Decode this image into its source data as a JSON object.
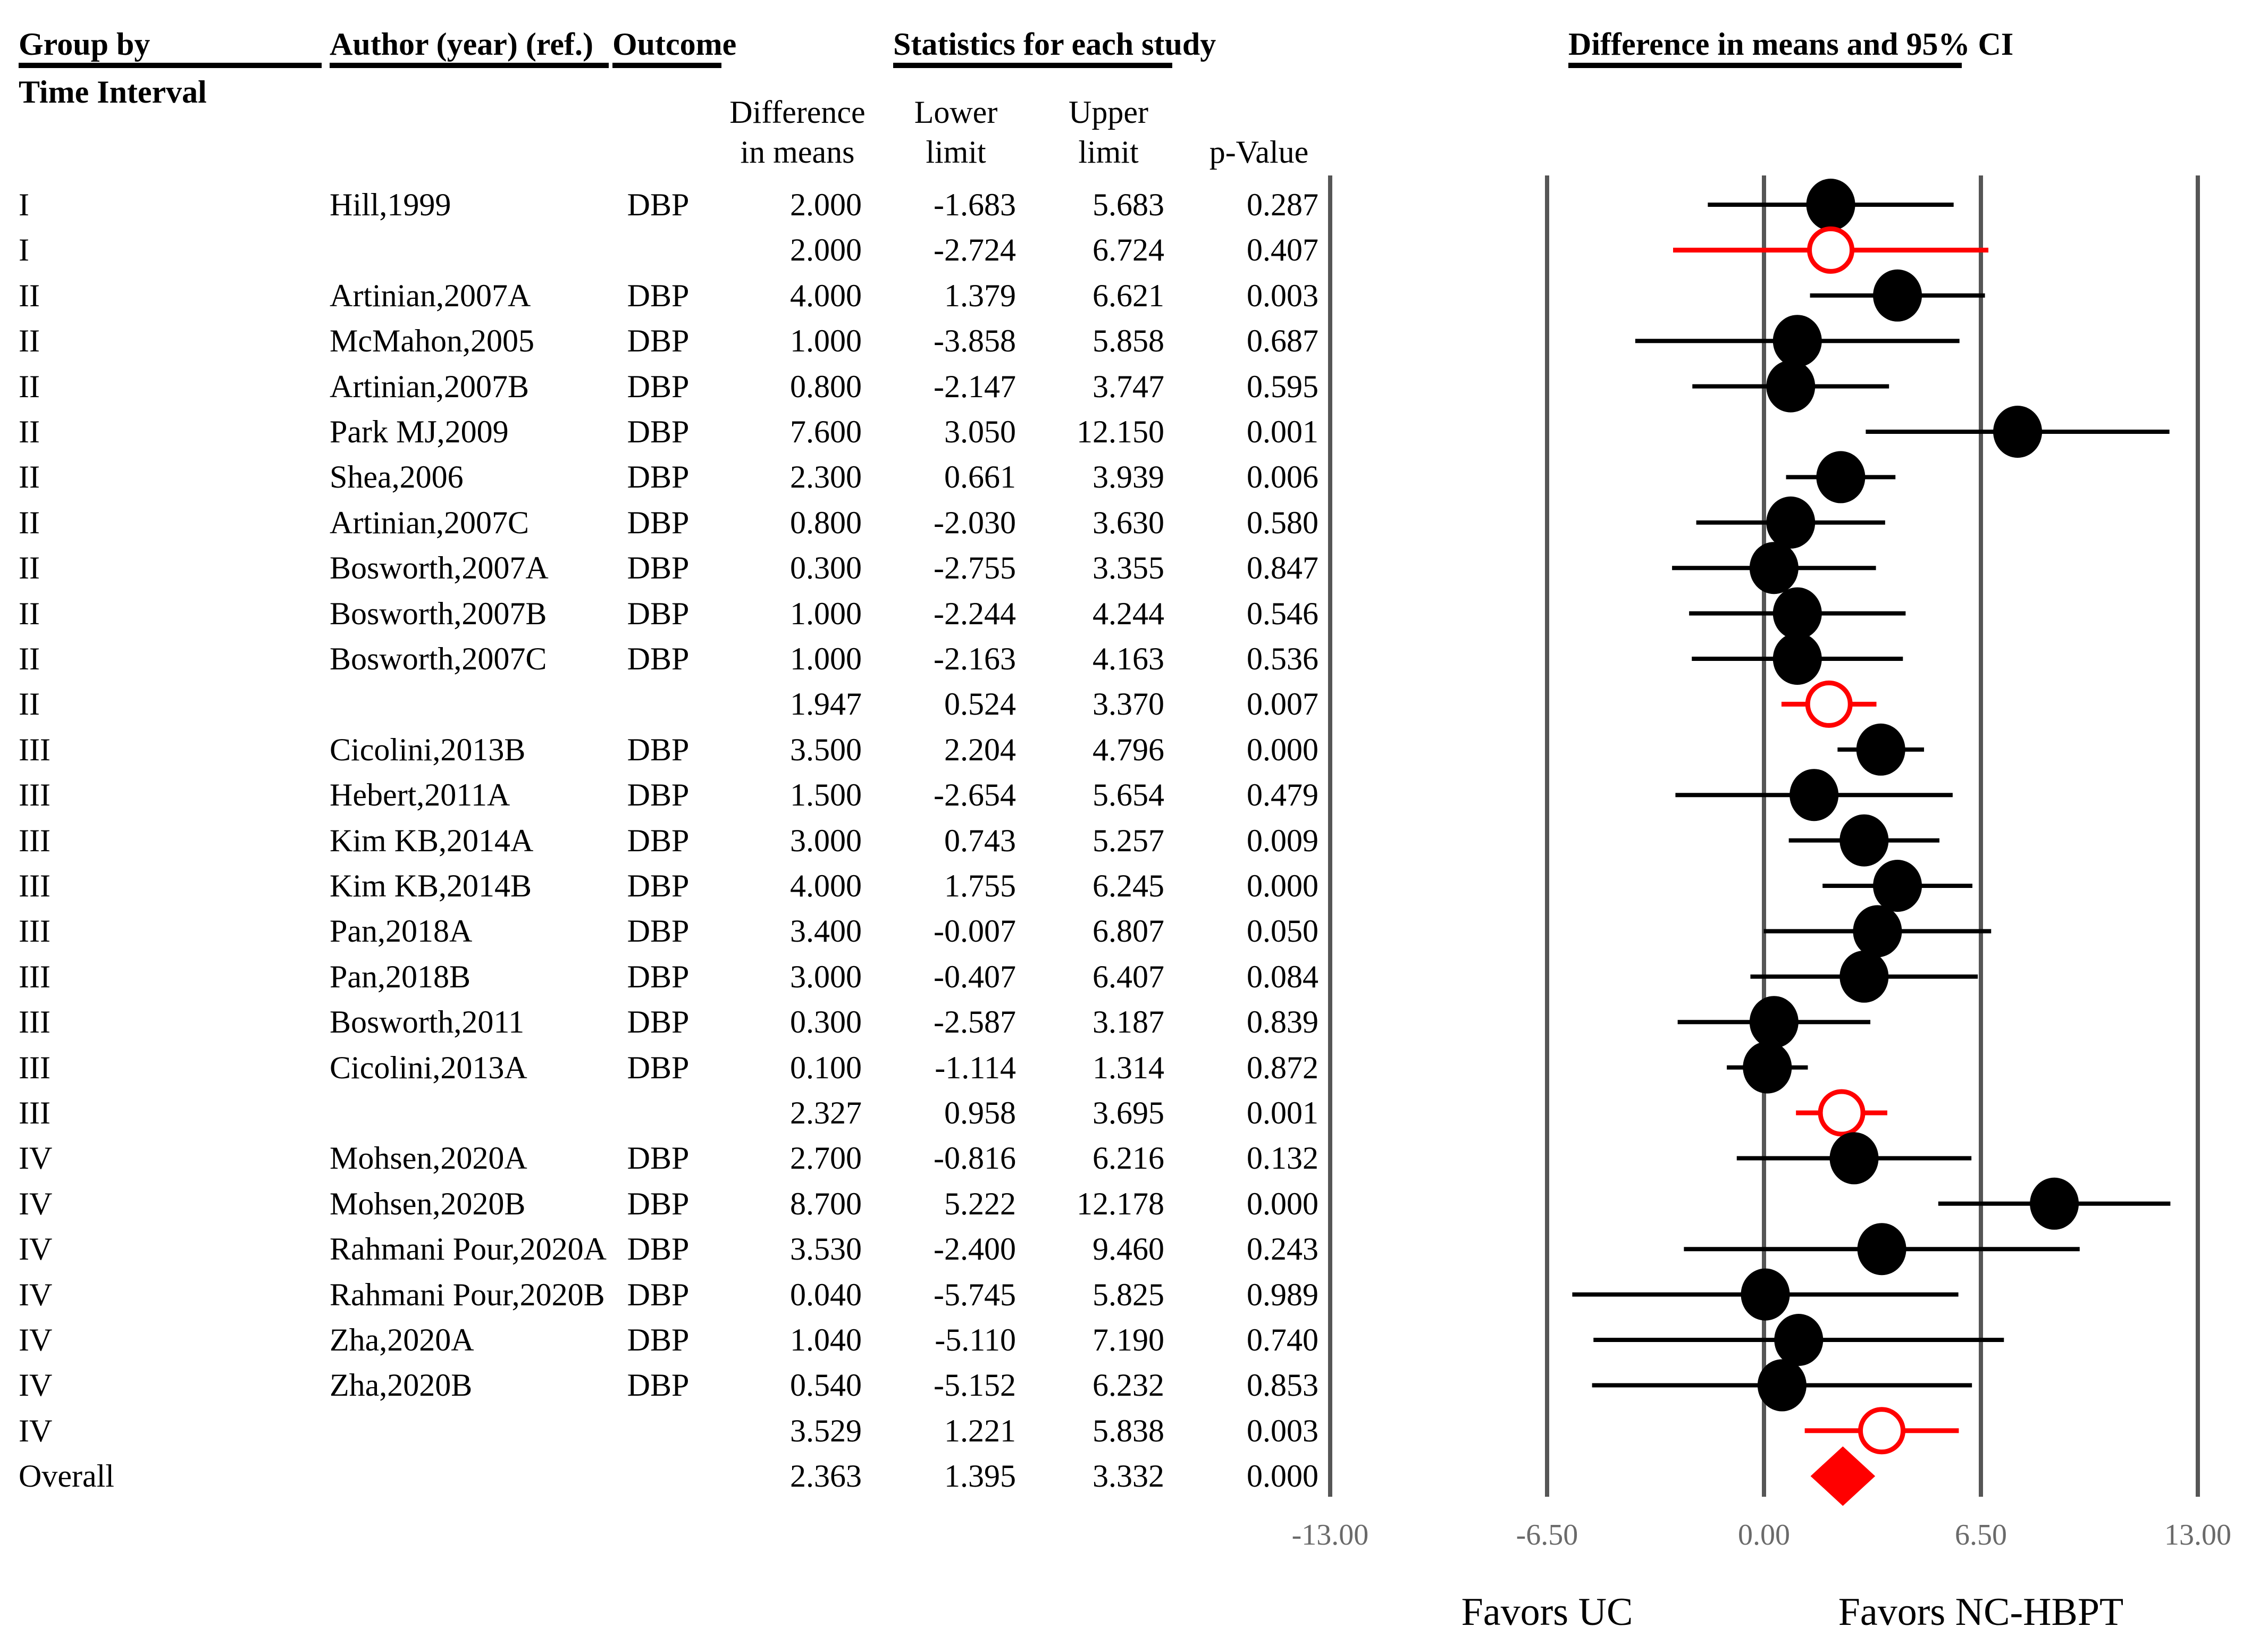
{
  "header": {
    "group_by": "Group by",
    "group_by_sub": "Time Interval",
    "author": "Author (year) (ref.)",
    "outcome": "Outcome",
    "statistics": "Statistics for each study",
    "plot_title": "Difference in means and 95% CI",
    "col_diff_line1": "Difference",
    "col_diff_line2": "in means",
    "col_lower_line1": "Lower",
    "col_lower_line2": "limit",
    "col_upper_line1": "Upper",
    "col_upper_line2": "limit",
    "col_p": "p-Value"
  },
  "footer": {
    "favors_left": "Favors UC",
    "favors_right": "Favors NC-HBPT"
  },
  "colors": {
    "study_marker": "#000000",
    "ci_line": "#000000",
    "summary_marker": "#ff0000",
    "overall_diamond": "#ff0000",
    "gridline": "#565656",
    "tick_label": "#6a6a6a",
    "text": "#000000"
  },
  "chart_data": {
    "type": "forest",
    "outcome_measure": "Difference in means",
    "xlim": [
      -13,
      13
    ],
    "grid": true,
    "ticks": [
      {
        "value": -13,
        "label": "-13.00"
      },
      {
        "value": -6.5,
        "label": "-6.50"
      },
      {
        "value": 0,
        "label": "0.00"
      },
      {
        "value": 6.5,
        "label": "6.50"
      },
      {
        "value": 13,
        "label": "13.00"
      }
    ],
    "rows": [
      {
        "group": "I",
        "author": "Hill,1999",
        "outcome": "DBP",
        "diff": "2.000",
        "lower": "-1.683",
        "upper": "5.683",
        "p": "0.287",
        "kind": "study"
      },
      {
        "group": "I",
        "author": "",
        "outcome": "",
        "diff": "2.000",
        "lower": "-2.724",
        "upper": "6.724",
        "p": "0.407",
        "kind": "summary"
      },
      {
        "group": "II",
        "author": "Artinian,2007A",
        "outcome": "DBP",
        "diff": "4.000",
        "lower": "1.379",
        "upper": "6.621",
        "p": "0.003",
        "kind": "study"
      },
      {
        "group": "II",
        "author": "McMahon,2005",
        "outcome": "DBP",
        "diff": "1.000",
        "lower": "-3.858",
        "upper": "5.858",
        "p": "0.687",
        "kind": "study"
      },
      {
        "group": "II",
        "author": "Artinian,2007B",
        "outcome": "DBP",
        "diff": "0.800",
        "lower": "-2.147",
        "upper": "3.747",
        "p": "0.595",
        "kind": "study"
      },
      {
        "group": "II",
        "author": "Park MJ,2009",
        "outcome": "DBP",
        "diff": "7.600",
        "lower": "3.050",
        "upper": "12.150",
        "p": "0.001",
        "kind": "study"
      },
      {
        "group": "II",
        "author": "Shea,2006",
        "outcome": "DBP",
        "diff": "2.300",
        "lower": "0.661",
        "upper": "3.939",
        "p": "0.006",
        "kind": "study"
      },
      {
        "group": "II",
        "author": "Artinian,2007C",
        "outcome": "DBP",
        "diff": "0.800",
        "lower": "-2.030",
        "upper": "3.630",
        "p": "0.580",
        "kind": "study"
      },
      {
        "group": "II",
        "author": "Bosworth,2007A",
        "outcome": "DBP",
        "diff": "0.300",
        "lower": "-2.755",
        "upper": "3.355",
        "p": "0.847",
        "kind": "study"
      },
      {
        "group": "II",
        "author": "Bosworth,2007B",
        "outcome": "DBP",
        "diff": "1.000",
        "lower": "-2.244",
        "upper": "4.244",
        "p": "0.546",
        "kind": "study"
      },
      {
        "group": "II",
        "author": "Bosworth,2007C",
        "outcome": "DBP",
        "diff": "1.000",
        "lower": "-2.163",
        "upper": "4.163",
        "p": "0.536",
        "kind": "study"
      },
      {
        "group": "II",
        "author": "",
        "outcome": "",
        "diff": "1.947",
        "lower": "0.524",
        "upper": "3.370",
        "p": "0.007",
        "kind": "summary"
      },
      {
        "group": "III",
        "author": "Cicolini,2013B",
        "outcome": "DBP",
        "diff": "3.500",
        "lower": "2.204",
        "upper": "4.796",
        "p": "0.000",
        "kind": "study"
      },
      {
        "group": "III",
        "author": "Hebert,2011A",
        "outcome": "DBP",
        "diff": "1.500",
        "lower": "-2.654",
        "upper": "5.654",
        "p": "0.479",
        "kind": "study"
      },
      {
        "group": "III",
        "author": "Kim KB,2014A",
        "outcome": "DBP",
        "diff": "3.000",
        "lower": "0.743",
        "upper": "5.257",
        "p": "0.009",
        "kind": "study"
      },
      {
        "group": "III",
        "author": "Kim KB,2014B",
        "outcome": "DBP",
        "diff": "4.000",
        "lower": "1.755",
        "upper": "6.245",
        "p": "0.000",
        "kind": "study"
      },
      {
        "group": "III",
        "author": "Pan,2018A",
        "outcome": "DBP",
        "diff": "3.400",
        "lower": "-0.007",
        "upper": "6.807",
        "p": "0.050",
        "kind": "study"
      },
      {
        "group": "III",
        "author": "Pan,2018B",
        "outcome": "DBP",
        "diff": "3.000",
        "lower": "-0.407",
        "upper": "6.407",
        "p": "0.084",
        "kind": "study"
      },
      {
        "group": "III",
        "author": "Bosworth,2011",
        "outcome": "DBP",
        "diff": "0.300",
        "lower": "-2.587",
        "upper": "3.187",
        "p": "0.839",
        "kind": "study"
      },
      {
        "group": "III",
        "author": "Cicolini,2013A",
        "outcome": "DBP",
        "diff": "0.100",
        "lower": "-1.114",
        "upper": "1.314",
        "p": "0.872",
        "kind": "study"
      },
      {
        "group": "III",
        "author": "",
        "outcome": "",
        "diff": "2.327",
        "lower": "0.958",
        "upper": "3.695",
        "p": "0.001",
        "kind": "summary"
      },
      {
        "group": "IV",
        "author": "Mohsen,2020A",
        "outcome": "DBP",
        "diff": "2.700",
        "lower": "-0.816",
        "upper": "6.216",
        "p": "0.132",
        "kind": "study"
      },
      {
        "group": "IV",
        "author": "Mohsen,2020B",
        "outcome": "DBP",
        "diff": "8.700",
        "lower": "5.222",
        "upper": "12.178",
        "p": "0.000",
        "kind": "study"
      },
      {
        "group": "IV",
        "author": "Rahmani Pour,2020A",
        "outcome": "DBP",
        "diff": "3.530",
        "lower": "-2.400",
        "upper": "9.460",
        "p": "0.243",
        "kind": "study"
      },
      {
        "group": "IV",
        "author": "Rahmani Pour,2020B",
        "outcome": "DBP",
        "diff": "0.040",
        "lower": "-5.745",
        "upper": "5.825",
        "p": "0.989",
        "kind": "study"
      },
      {
        "group": "IV",
        "author": "Zha,2020A",
        "outcome": "DBP",
        "diff": "1.040",
        "lower": "-5.110",
        "upper": "7.190",
        "p": "0.740",
        "kind": "study"
      },
      {
        "group": "IV",
        "author": "Zha,2020B",
        "outcome": "DBP",
        "diff": "0.540",
        "lower": "-5.152",
        "upper": "6.232",
        "p": "0.853",
        "kind": "study"
      },
      {
        "group": "IV",
        "author": "",
        "outcome": "",
        "diff": "3.529",
        "lower": "1.221",
        "upper": "5.838",
        "p": "0.003",
        "kind": "summary"
      },
      {
        "group": "Overall",
        "author": "",
        "outcome": "",
        "diff": "2.363",
        "lower": "1.395",
        "upper": "3.332",
        "p": "0.000",
        "kind": "overall"
      }
    ]
  }
}
